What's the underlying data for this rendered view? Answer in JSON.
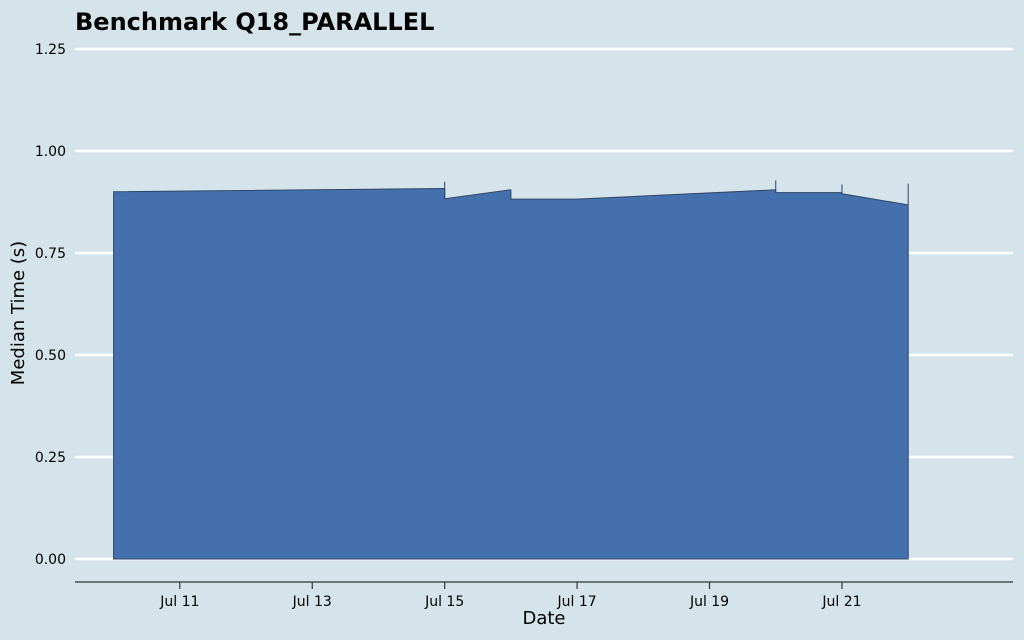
{
  "chart_data": {
    "type": "area",
    "title": "Benchmark Q18_PARALLEL",
    "xlabel": "Date",
    "ylabel": "Median Time (s)",
    "x_axis_type": "date",
    "xlim": [
      "2024-07-09T10:00",
      "2024-07-23T14:00"
    ],
    "ylim": [
      0,
      1.25
    ],
    "yticks": [
      0,
      0.25,
      0.5,
      0.75,
      1.0,
      1.25
    ],
    "ytick_labels": [
      "0.00",
      "0.25",
      "0.50",
      "0.75",
      "1.00",
      "1.25"
    ],
    "xticks": [
      "2024-07-11",
      "2024-07-13",
      "2024-07-15",
      "2024-07-17",
      "2024-07-19",
      "2024-07-21"
    ],
    "xtick_labels": [
      "Jul 11",
      "Jul 13",
      "Jul 15",
      "Jul 17",
      "Jul 19",
      "Jul 21"
    ],
    "grid": "horizontal",
    "fill_color": "#4471ad",
    "background_color": "#d5e3ea",
    "series": [
      {
        "x": [
          "2024-07-10",
          "2024-07-15",
          "2024-07-15",
          "2024-07-16",
          "2024-07-16",
          "2024-07-17",
          "2024-07-20",
          "2024-07-20",
          "2024-07-21",
          "2024-07-21",
          "2024-07-22"
        ],
        "values": [
          0.9,
          0.908,
          0.883,
          0.905,
          0.882,
          0.882,
          0.905,
          0.898,
          0.898,
          0.895,
          0.868
        ]
      }
    ],
    "error_bars": [
      {
        "x": "2024-07-15",
        "low": 0.883,
        "high": 0.925
      },
      {
        "x": "2024-07-20",
        "low": 0.898,
        "high": 0.928
      },
      {
        "x": "2024-07-21",
        "low": 0.895,
        "high": 0.918
      },
      {
        "x": "2024-07-22",
        "low": 0.868,
        "high": 0.92
      }
    ]
  }
}
